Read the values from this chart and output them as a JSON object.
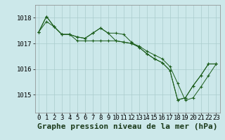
{
  "background_color": "#cce8ea",
  "grid_color": "#aacccc",
  "line_color": "#1a5c1a",
  "marker_color": "#1a5c1a",
  "xlabel": "Graphe pression niveau de la mer (hPa)",
  "xlabel_fontsize": 8,
  "tick_fontsize": 6.5,
  "yticks": [
    1015,
    1016,
    1017,
    1018
  ],
  "ylim": [
    1014.3,
    1018.5
  ],
  "xlim": [
    -0.5,
    23.5
  ],
  "xticks": [
    0,
    1,
    2,
    3,
    4,
    5,
    6,
    7,
    8,
    9,
    10,
    11,
    12,
    13,
    14,
    15,
    16,
    17,
    18,
    19,
    20,
    21,
    22,
    23
  ],
  "series": [
    [
      1017.45,
      1017.85,
      1017.65,
      1017.35,
      1017.35,
      1017.1,
      1017.1,
      1017.1,
      1017.1,
      1017.1,
      1017.1,
      1017.05,
      1017.0,
      1016.85,
      1016.6,
      1016.4,
      1016.25,
      1015.95,
      1014.8,
      1014.88,
      1015.35,
      1015.75,
      1016.2,
      1016.2
    ],
    [
      1017.45,
      1018.05,
      1017.65,
      1017.35,
      1017.35,
      1017.25,
      1017.2,
      1017.4,
      1017.6,
      1017.4,
      1017.4,
      1017.35,
      1017.05,
      1016.85,
      1016.6,
      1016.4,
      1016.25,
      1015.95,
      1014.8,
      1014.88,
      1015.35,
      1015.75,
      1016.2,
      1016.2
    ],
    [
      1017.45,
      1018.05,
      1017.65,
      1017.35,
      1017.35,
      1017.25,
      1017.2,
      1017.4,
      1017.6,
      1017.4,
      1017.1,
      1017.05,
      1017.0,
      1016.9,
      1016.7,
      1016.55,
      1016.4,
      1016.1,
      1015.45,
      1014.78,
      1014.88,
      1015.3,
      1015.75,
      1016.2
    ]
  ]
}
